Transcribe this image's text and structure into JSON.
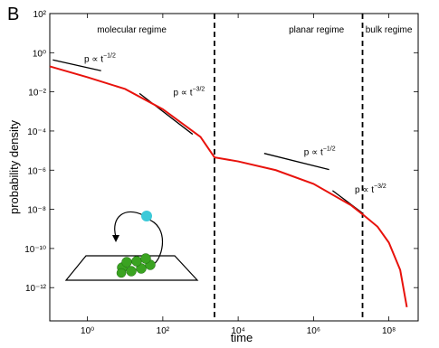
{
  "chart_data": {
    "type": "line",
    "panel_label": "B",
    "x_label": "time",
    "y_label": "probability density",
    "log_x": true,
    "log_y": true,
    "xlim": [
      0.1,
      600000000
    ],
    "ylim": [
      2e-14,
      100
    ],
    "xticks": [
      {
        "value": 1,
        "label": "10⁰"
      },
      {
        "value": 100,
        "label": "10²"
      },
      {
        "value": 10000,
        "label": "10⁴"
      },
      {
        "value": 1000000,
        "label": "10⁶"
      },
      {
        "value": 100000000,
        "label": "10⁸"
      }
    ],
    "yticks": [
      {
        "value": 1e-12,
        "label": "10⁻¹²"
      },
      {
        "value": 1e-10,
        "label": "10⁻¹⁰"
      },
      {
        "value": 1e-08,
        "label": "10⁻⁸"
      },
      {
        "value": 1e-06,
        "label": "10⁻⁶"
      },
      {
        "value": 0.0001,
        "label": "10⁻⁴"
      },
      {
        "value": 0.01,
        "label": "10⁻²"
      },
      {
        "value": 1,
        "label": "10⁰"
      },
      {
        "value": 100,
        "label": "10²"
      }
    ],
    "series": [
      {
        "color": "#e8120c",
        "x": [
          0.1,
          1,
          10,
          100,
          1000,
          2350,
          10000,
          100000,
          1000000,
          10000000,
          20000000,
          50000000,
          100000000,
          200000000,
          300000000
        ],
        "values": [
          0.2,
          0.056,
          0.014,
          0.0013,
          5e-05,
          4.5e-06,
          2.8e-06,
          1e-06,
          2e-07,
          1.6e-08,
          5.6e-09,
          1.3e-09,
          2e-10,
          8e-12,
          1e-13
        ]
      }
    ],
    "boundaries": [
      2350,
      20000000
    ],
    "regimes": [
      {
        "label": "molecular regime",
        "x": 15
      },
      {
        "label": "planar regime",
        "x": 1200000
      },
      {
        "label": "bulk regime",
        "x": 100000000
      }
    ],
    "guides": [
      {
        "label": "p ∝ t",
        "exponent": "−1/2",
        "x": [
          0.12,
          2.3
        ],
        "y": [
          0.43,
          0.12
        ]
      },
      {
        "label": "p ∝ t",
        "exponent": "−3/2",
        "x": [
          24,
          620
        ],
        "y": [
          0.0083,
          6.8e-05
        ]
      },
      {
        "label": "p ∝ t",
        "exponent": "−1/2",
        "x": [
          49000,
          2600000
        ],
        "y": [
          7.2e-06,
          1.07e-06
        ]
      },
      {
        "label": "p ∝ t",
        "exponent": "−3/2",
        "x": [
          3200000,
          20000000
        ],
        "y": [
          9e-08,
          6.4e-09
        ]
      }
    ]
  }
}
